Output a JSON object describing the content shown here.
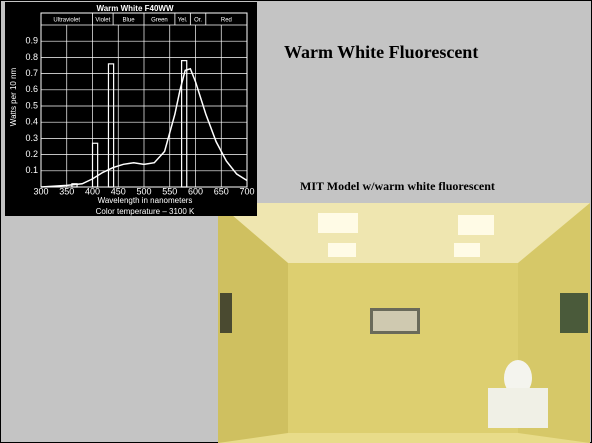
{
  "slide": {
    "title": "Warm White Fluorescent",
    "caption": "MIT Model w/warm white fluorescent"
  },
  "chart_data": {
    "type": "line",
    "title": "Warm White F40WW",
    "bands": [
      {
        "label": "Ultraviolet",
        "range": [
          300,
          400
        ]
      },
      {
        "label": "Violet",
        "range": [
          400,
          440
        ]
      },
      {
        "label": "Blue",
        "range": [
          440,
          500
        ]
      },
      {
        "label": "Green",
        "range": [
          500,
          560
        ]
      },
      {
        "label": "Yel.",
        "range": [
          560,
          590
        ]
      },
      {
        "label": "Or.",
        "range": [
          590,
          620
        ]
      },
      {
        "label": "Red",
        "range": [
          620,
          700
        ]
      }
    ],
    "x_label": "Wavelength in nanometers",
    "y_label": "Watts per 10 nm",
    "note": "Color temperature – 3100 K",
    "x": [
      300,
      350,
      380,
      400,
      420,
      440,
      460,
      480,
      500,
      520,
      540,
      560,
      570,
      580,
      590,
      600,
      620,
      640,
      660,
      680,
      700
    ],
    "series": [
      {
        "color": "#ffffff",
        "values": [
          0,
          0.01,
          0.02,
          0.05,
          0.09,
          0.12,
          0.14,
          0.15,
          0.14,
          0.15,
          0.22,
          0.45,
          0.6,
          0.72,
          0.73,
          0.65,
          0.45,
          0.28,
          0.16,
          0.08,
          0.04
        ]
      }
    ],
    "bars": {
      "x": [
        365,
        405,
        436,
        578
      ],
      "values": [
        0.02,
        0.27,
        0.76,
        0.78
      ],
      "width": 10
    },
    "xlim": [
      300,
      700
    ],
    "ylim": [
      0,
      1
    ],
    "xticks": [
      300,
      350,
      400,
      450,
      500,
      550,
      600,
      650,
      700
    ],
    "yticks": [
      0.1,
      0.2,
      0.3,
      0.4,
      0.5,
      0.6,
      0.7,
      0.8,
      0.9
    ],
    "grid": true
  }
}
